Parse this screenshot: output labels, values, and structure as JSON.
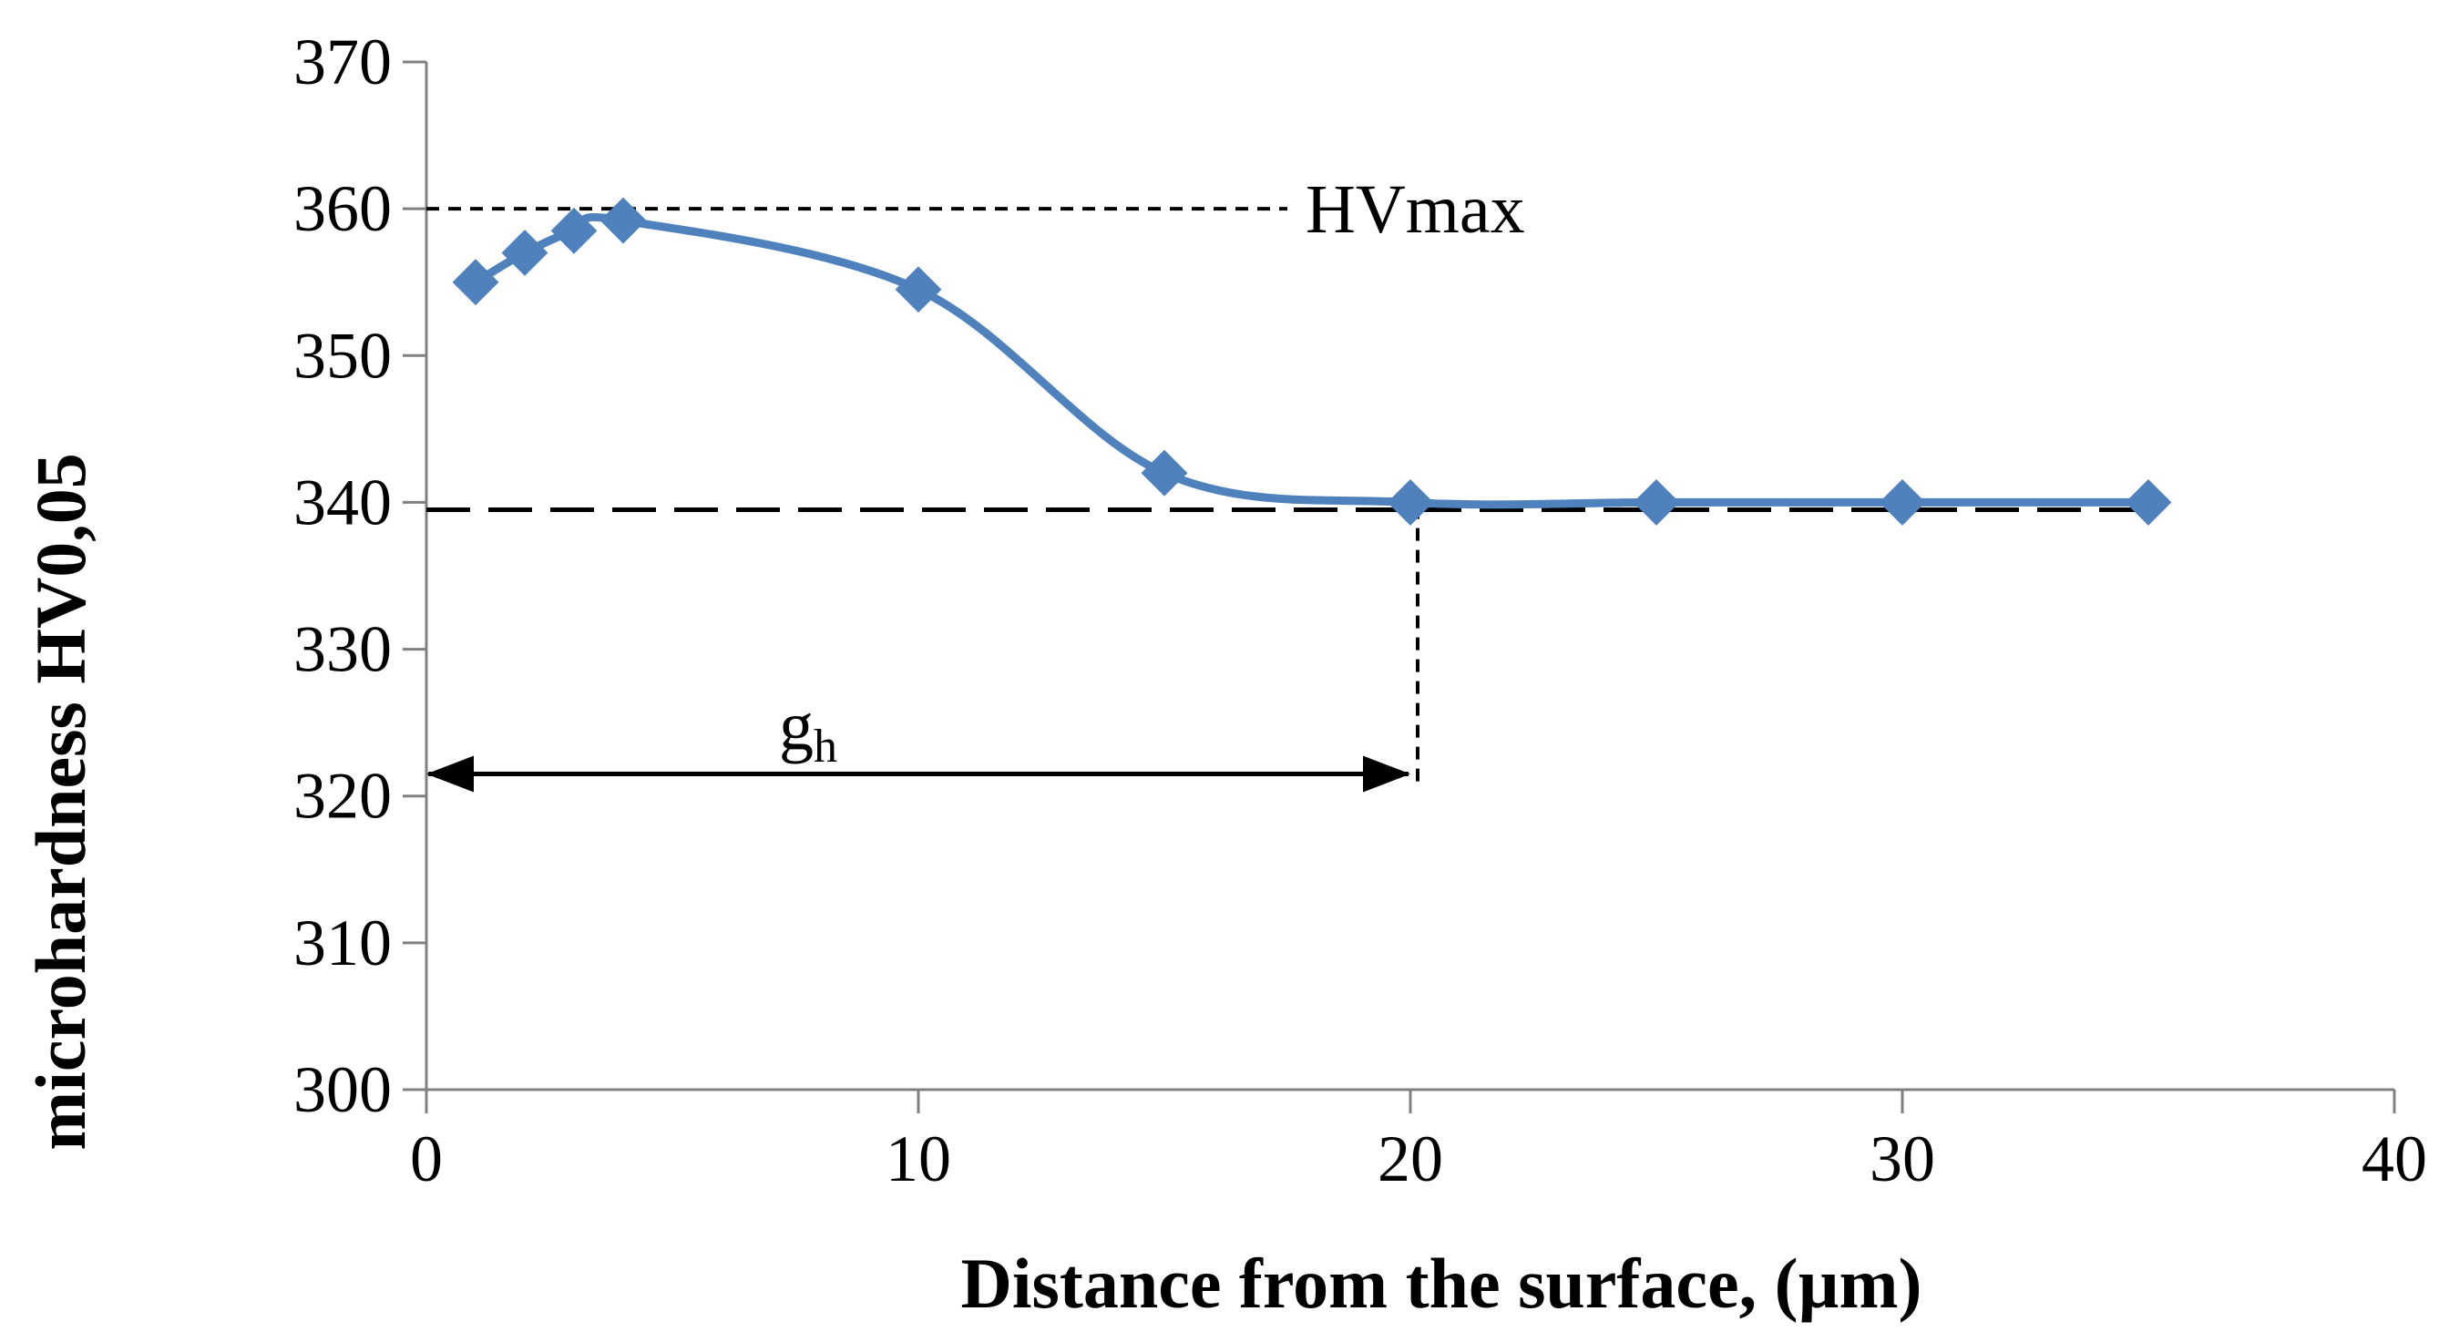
{
  "chart_data": {
    "type": "line",
    "title": "",
    "xlabel": "Distance from the surface, (µm)",
    "ylabel": "microhardness HV0,05",
    "xlim": [
      0,
      40
    ],
    "ylim": [
      300,
      370
    ],
    "x_ticks": [
      0,
      10,
      20,
      30,
      40
    ],
    "y_ticks": [
      300,
      310,
      320,
      330,
      340,
      350,
      360,
      370
    ],
    "grid": false,
    "legend": "none",
    "series": [
      {
        "name": "microhardness",
        "color": "#4f81bd",
        "marker": "diamond",
        "smooth": true,
        "x": [
          1,
          2,
          3,
          4,
          10,
          15,
          20,
          25,
          30,
          35
        ],
        "y": [
          355,
          357,
          358.5,
          359.2,
          354.5,
          342,
          340,
          340,
          340,
          340
        ]
      }
    ],
    "reference_lines": {
      "hv_max": {
        "y": 360,
        "x_from": 0,
        "x_to": 17.5,
        "label": "HVmax"
      },
      "baseline": {
        "y": 339.5,
        "x_from": 0,
        "x_to": 35.2
      },
      "depth_marker": {
        "x": 20,
        "y_from": 321,
        "y_to": 339.5
      }
    },
    "depth_arrow": {
      "x_from": 0,
      "x_to": 20,
      "y": 321.5,
      "label_main": "g",
      "label_sub": "h"
    }
  }
}
